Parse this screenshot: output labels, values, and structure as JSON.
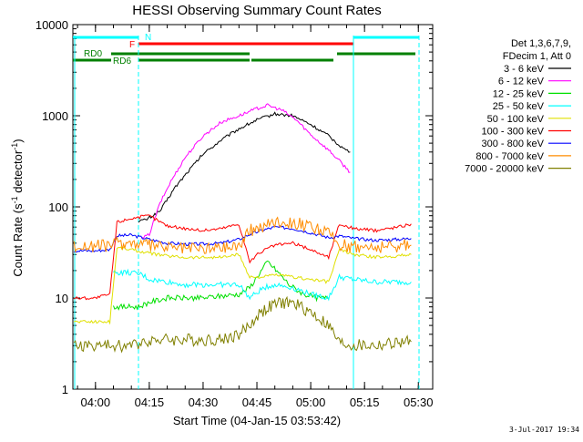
{
  "title": "HESSI Observing Summary Count Rates",
  "ylabel_main": "Count Rate (s",
  "ylabel_sup1": "-1",
  "ylabel_mid": " detector",
  "ylabel_sup2": "-1",
  "ylabel_end": ")",
  "xlabel": "Start Time (04-Jan-15 03:53:42)",
  "footer_date": "3-Jul-2017 19:34",
  "legend": {
    "header1": "Det 1,3,6,7,9,",
    "header2": "FDecim 1, Att 0"
  },
  "flags": [
    {
      "label": "N",
      "color": "#00ffff"
    },
    {
      "label": "F",
      "color": "#ff0000"
    },
    {
      "label": "RD0",
      "color": "#008000"
    },
    {
      "label": "RD6",
      "color": "#008000"
    }
  ],
  "chart_data": {
    "type": "line",
    "title": "HESSI Observing Summary Count Rates",
    "xlabel": "Start Time (04-Jan-15 03:53:42)",
    "ylabel": "Count Rate (s-1 detector-1)",
    "yscale": "log",
    "ylim": [
      1,
      10000
    ],
    "xlim": [
      "03:53:42",
      "05:34:00"
    ],
    "x_ticks": [
      "04:00",
      "04:15",
      "04:30",
      "04:45",
      "05:00",
      "05:15",
      "05:30"
    ],
    "y_ticks": [
      "1",
      "10",
      "100",
      "1000",
      "10000"
    ],
    "legend_position": "right",
    "series": [
      {
        "name": "3 - 6 keV",
        "color": "#000000",
        "x": [
          "04:12",
          "04:14",
          "04:18",
          "04:22",
          "04:26",
          "04:30",
          "04:35",
          "04:40",
          "04:45",
          "04:50",
          "04:55",
          "05:00",
          "05:05",
          "05:09",
          "05:11"
        ],
        "y": [
          70,
          72,
          90,
          160,
          250,
          380,
          540,
          720,
          900,
          1050,
          1000,
          800,
          600,
          440,
          400
        ]
      },
      {
        "name": "6 - 12 keV",
        "color": "#ff00ff",
        "x": [
          "04:13",
          "04:15",
          "04:18",
          "04:21",
          "04:25",
          "04:30",
          "04:35",
          "04:40",
          "04:45",
          "04:48",
          "04:52",
          "04:56",
          "05:00",
          "05:05",
          "05:08",
          "05:11"
        ],
        "y": [
          45,
          50,
          110,
          190,
          350,
          600,
          850,
          1000,
          1200,
          1300,
          1150,
          900,
          620,
          420,
          320,
          240
        ]
      },
      {
        "name": "12 - 25 keV",
        "color": "#00e000",
        "x": [
          "04:05",
          "04:09",
          "04:12",
          "04:15",
          "04:20",
          "04:25",
          "04:30",
          "04:35",
          "04:40",
          "04:43",
          "04:45",
          "04:48",
          "04:51",
          "04:54",
          "04:58",
          "05:02",
          "05:05"
        ],
        "y": [
          8,
          8,
          8,
          9,
          10,
          10,
          10,
          10.5,
          11,
          13,
          17,
          25,
          19,
          14,
          11,
          10,
          10
        ]
      },
      {
        "name": "25 - 50 keV",
        "color": "#00ffff",
        "x": [
          "04:05",
          "04:09",
          "04:13",
          "04:15",
          "04:20",
          "04:25",
          "04:30",
          "04:35",
          "04:40",
          "04:43",
          "04:47",
          "04:50",
          "04:55",
          "05:00",
          "05:05",
          "05:08",
          "05:12",
          "05:18",
          "05:24",
          "05:28"
        ],
        "y": [
          19,
          19,
          18,
          16,
          15,
          14,
          14,
          14,
          14,
          10,
          13,
          14,
          13,
          11,
          10,
          17,
          16,
          15,
          15,
          15
        ]
      },
      {
        "name": "50 - 100 keV",
        "color": "#e0e000",
        "x": [
          "03:54",
          "04:00",
          "04:04",
          "04:06",
          "04:10",
          "04:15",
          "04:20",
          "04:25",
          "04:30",
          "04:35",
          "04:40",
          "04:43",
          "04:47",
          "04:50",
          "04:55",
          "05:00",
          "05:05",
          "05:08",
          "05:12",
          "05:18",
          "05:24",
          "05:28"
        ],
        "y": [
          5.5,
          5.5,
          5.5,
          36,
          34,
          31,
          29,
          28,
          28,
          28,
          30,
          17,
          17,
          18,
          17,
          16,
          15,
          34,
          30,
          28,
          29,
          30
        ]
      },
      {
        "name": "100 - 300 keV",
        "color": "#ff0000",
        "x": [
          "03:54",
          "04:00",
          "04:04",
          "04:06",
          "04:10",
          "04:15",
          "04:20",
          "04:25",
          "04:30",
          "04:35",
          "04:40",
          "04:43",
          "04:46",
          "04:50",
          "04:55",
          "05:00",
          "05:05",
          "05:08",
          "05:12",
          "05:18",
          "05:24",
          "05:28"
        ],
        "y": [
          10,
          10,
          11,
          68,
          75,
          80,
          62,
          58,
          55,
          58,
          65,
          25,
          32,
          38,
          40,
          34,
          28,
          65,
          58,
          55,
          60,
          65
        ]
      },
      {
        "name": "300 - 800 keV",
        "color": "#0000ff",
        "x": [
          "03:54",
          "04:00",
          "04:04",
          "04:06",
          "04:10",
          "04:15",
          "04:20",
          "04:25",
          "04:30",
          "04:35",
          "04:40",
          "04:43",
          "04:47",
          "04:50",
          "04:55",
          "05:00",
          "05:05",
          "05:08",
          "05:12",
          "05:18",
          "05:24",
          "05:28"
        ],
        "y": [
          33,
          33,
          34,
          48,
          49,
          44,
          40,
          39,
          39,
          40,
          44,
          50,
          56,
          60,
          58,
          52,
          46,
          48,
          45,
          43,
          44,
          45
        ]
      },
      {
        "name": "800 - 7000 keV",
        "color": "#ff8c00",
        "x": [
          "03:54",
          "04:00",
          "04:04",
          "04:06",
          "04:10",
          "04:15",
          "04:20",
          "04:25",
          "04:30",
          "04:35",
          "04:40",
          "04:43",
          "04:47",
          "04:50",
          "04:55",
          "05:00",
          "05:05",
          "05:08",
          "05:12",
          "05:18",
          "05:24",
          "05:28"
        ],
        "y": [
          37,
          37,
          38,
          40,
          40,
          38,
          36,
          35,
          35,
          36,
          38,
          55,
          62,
          70,
          68,
          60,
          52,
          38,
          37,
          36,
          37,
          38
        ]
      },
      {
        "name": "7000 - 20000 keV",
        "color": "#808000",
        "x": [
          "03:54",
          "04:00",
          "04:05",
          "04:10",
          "04:15",
          "04:20",
          "04:25",
          "04:30",
          "04:35",
          "04:40",
          "04:43",
          "04:46",
          "04:50",
          "04:53",
          "04:56",
          "05:00",
          "05:05",
          "05:08",
          "05:12",
          "05:18",
          "05:24",
          "05:28"
        ],
        "y": [
          3,
          3,
          3,
          3,
          3.5,
          3.5,
          3.5,
          3.5,
          3.5,
          4,
          5,
          7,
          8.5,
          9,
          8.5,
          7,
          5,
          3.2,
          3,
          3,
          3.2,
          3.3
        ]
      }
    ]
  }
}
